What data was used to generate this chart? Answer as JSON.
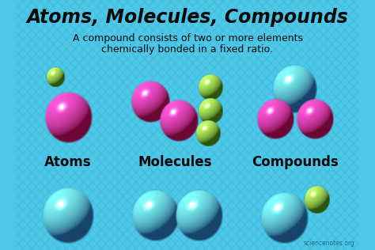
{
  "title": "Atoms, Molecules, Compounds",
  "subtitle1": "A compound consists of two or more elements",
  "subtitle2": "chemically bonded in a fixed ratio.",
  "bg_color": "#4dc8e8",
  "bg_pattern_color": "#3ab5d5",
  "title_color": "#0a0a0a",
  "label_color": "#0a0a0a",
  "watermark": "sciencenotes.org",
  "pink": "#ee1177",
  "green": "#66bb22",
  "blue": "#3399ee",
  "title_fontsize": 17,
  "subtitle_fontsize": 9,
  "label_fontsize": 12
}
